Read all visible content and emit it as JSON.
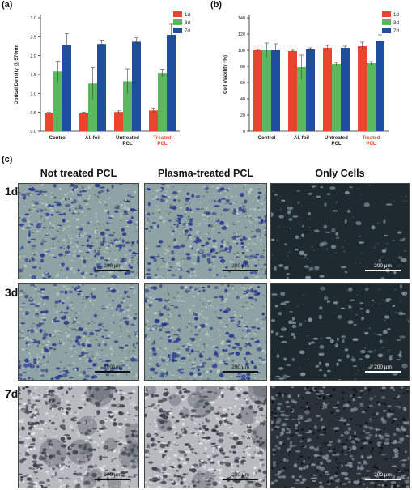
{
  "panels": {
    "a": "(a)",
    "b": "(b)",
    "c": "(c)"
  },
  "chart_data": [
    {
      "type": "bar",
      "categories": [
        "Control",
        "Al. foil",
        "Untreated PCL",
        "Treated PCL"
      ],
      "category_lines": [
        [
          "Control"
        ],
        [
          "Al. foil"
        ],
        [
          "Untreated",
          "PCL"
        ],
        [
          "Treated",
          "PCL"
        ]
      ],
      "highlight_category_index": 3,
      "highlight_color": "#e8452c",
      "ylabel": "Optical Density @ 570nm",
      "ylim": [
        0,
        3.0
      ],
      "yticks": [
        "0.0",
        "0.5",
        "1.0",
        "1.5",
        "2.0",
        "2.5",
        "3.0"
      ],
      "legend_position": "top-right",
      "series": [
        {
          "name": "1d",
          "color": "#e8452c",
          "values": [
            0.48,
            0.48,
            0.51,
            0.55
          ],
          "errors": [
            0.02,
            0.02,
            0.03,
            0.06
          ]
        },
        {
          "name": "3d",
          "color": "#5cb85c",
          "values": [
            1.58,
            1.26,
            1.32,
            1.54
          ],
          "errors": [
            0.27,
            0.42,
            0.33,
            0.1
          ]
        },
        {
          "name": "7d",
          "color": "#1f4e9e",
          "values": [
            2.28,
            2.31,
            2.37,
            2.55
          ],
          "errors": [
            0.3,
            0.08,
            0.1,
            0.28
          ]
        }
      ]
    },
    {
      "type": "bar",
      "categories": [
        "Control",
        "Al. foil",
        "Untreated PCL",
        "Treated PCL"
      ],
      "category_lines": [
        [
          "Control"
        ],
        [
          "Al. foil"
        ],
        [
          "Untreated",
          "PCL"
        ],
        [
          "Treated",
          "PCL"
        ]
      ],
      "highlight_category_index": 3,
      "highlight_color": "#e8452c",
      "ylabel": "Cell Viability (%)",
      "ylim": [
        0,
        140
      ],
      "yticks": [
        "0",
        "20",
        "40",
        "60",
        "80",
        "100",
        "120",
        "140"
      ],
      "legend_position": "top-right",
      "series": [
        {
          "name": "1d",
          "color": "#e8452c",
          "values": [
            100,
            99,
            103,
            105
          ],
          "errors": [
            1,
            1,
            3,
            5
          ]
        },
        {
          "name": "3d",
          "color": "#5cb85c",
          "values": [
            100,
            79,
            83,
            84
          ],
          "errors": [
            9,
            15,
            2,
            2
          ]
        },
        {
          "name": "7d",
          "color": "#1f4e9e",
          "values": [
            100,
            101,
            103,
            111
          ],
          "errors": [
            8,
            2,
            2,
            8
          ]
        }
      ]
    }
  ],
  "micrographs": {
    "columns": [
      "Not treated PCL",
      "Plasma-treated PCL",
      "Only Cells"
    ],
    "rows": [
      "1d",
      "3d",
      "7d"
    ],
    "scale_label": "200 μm"
  }
}
